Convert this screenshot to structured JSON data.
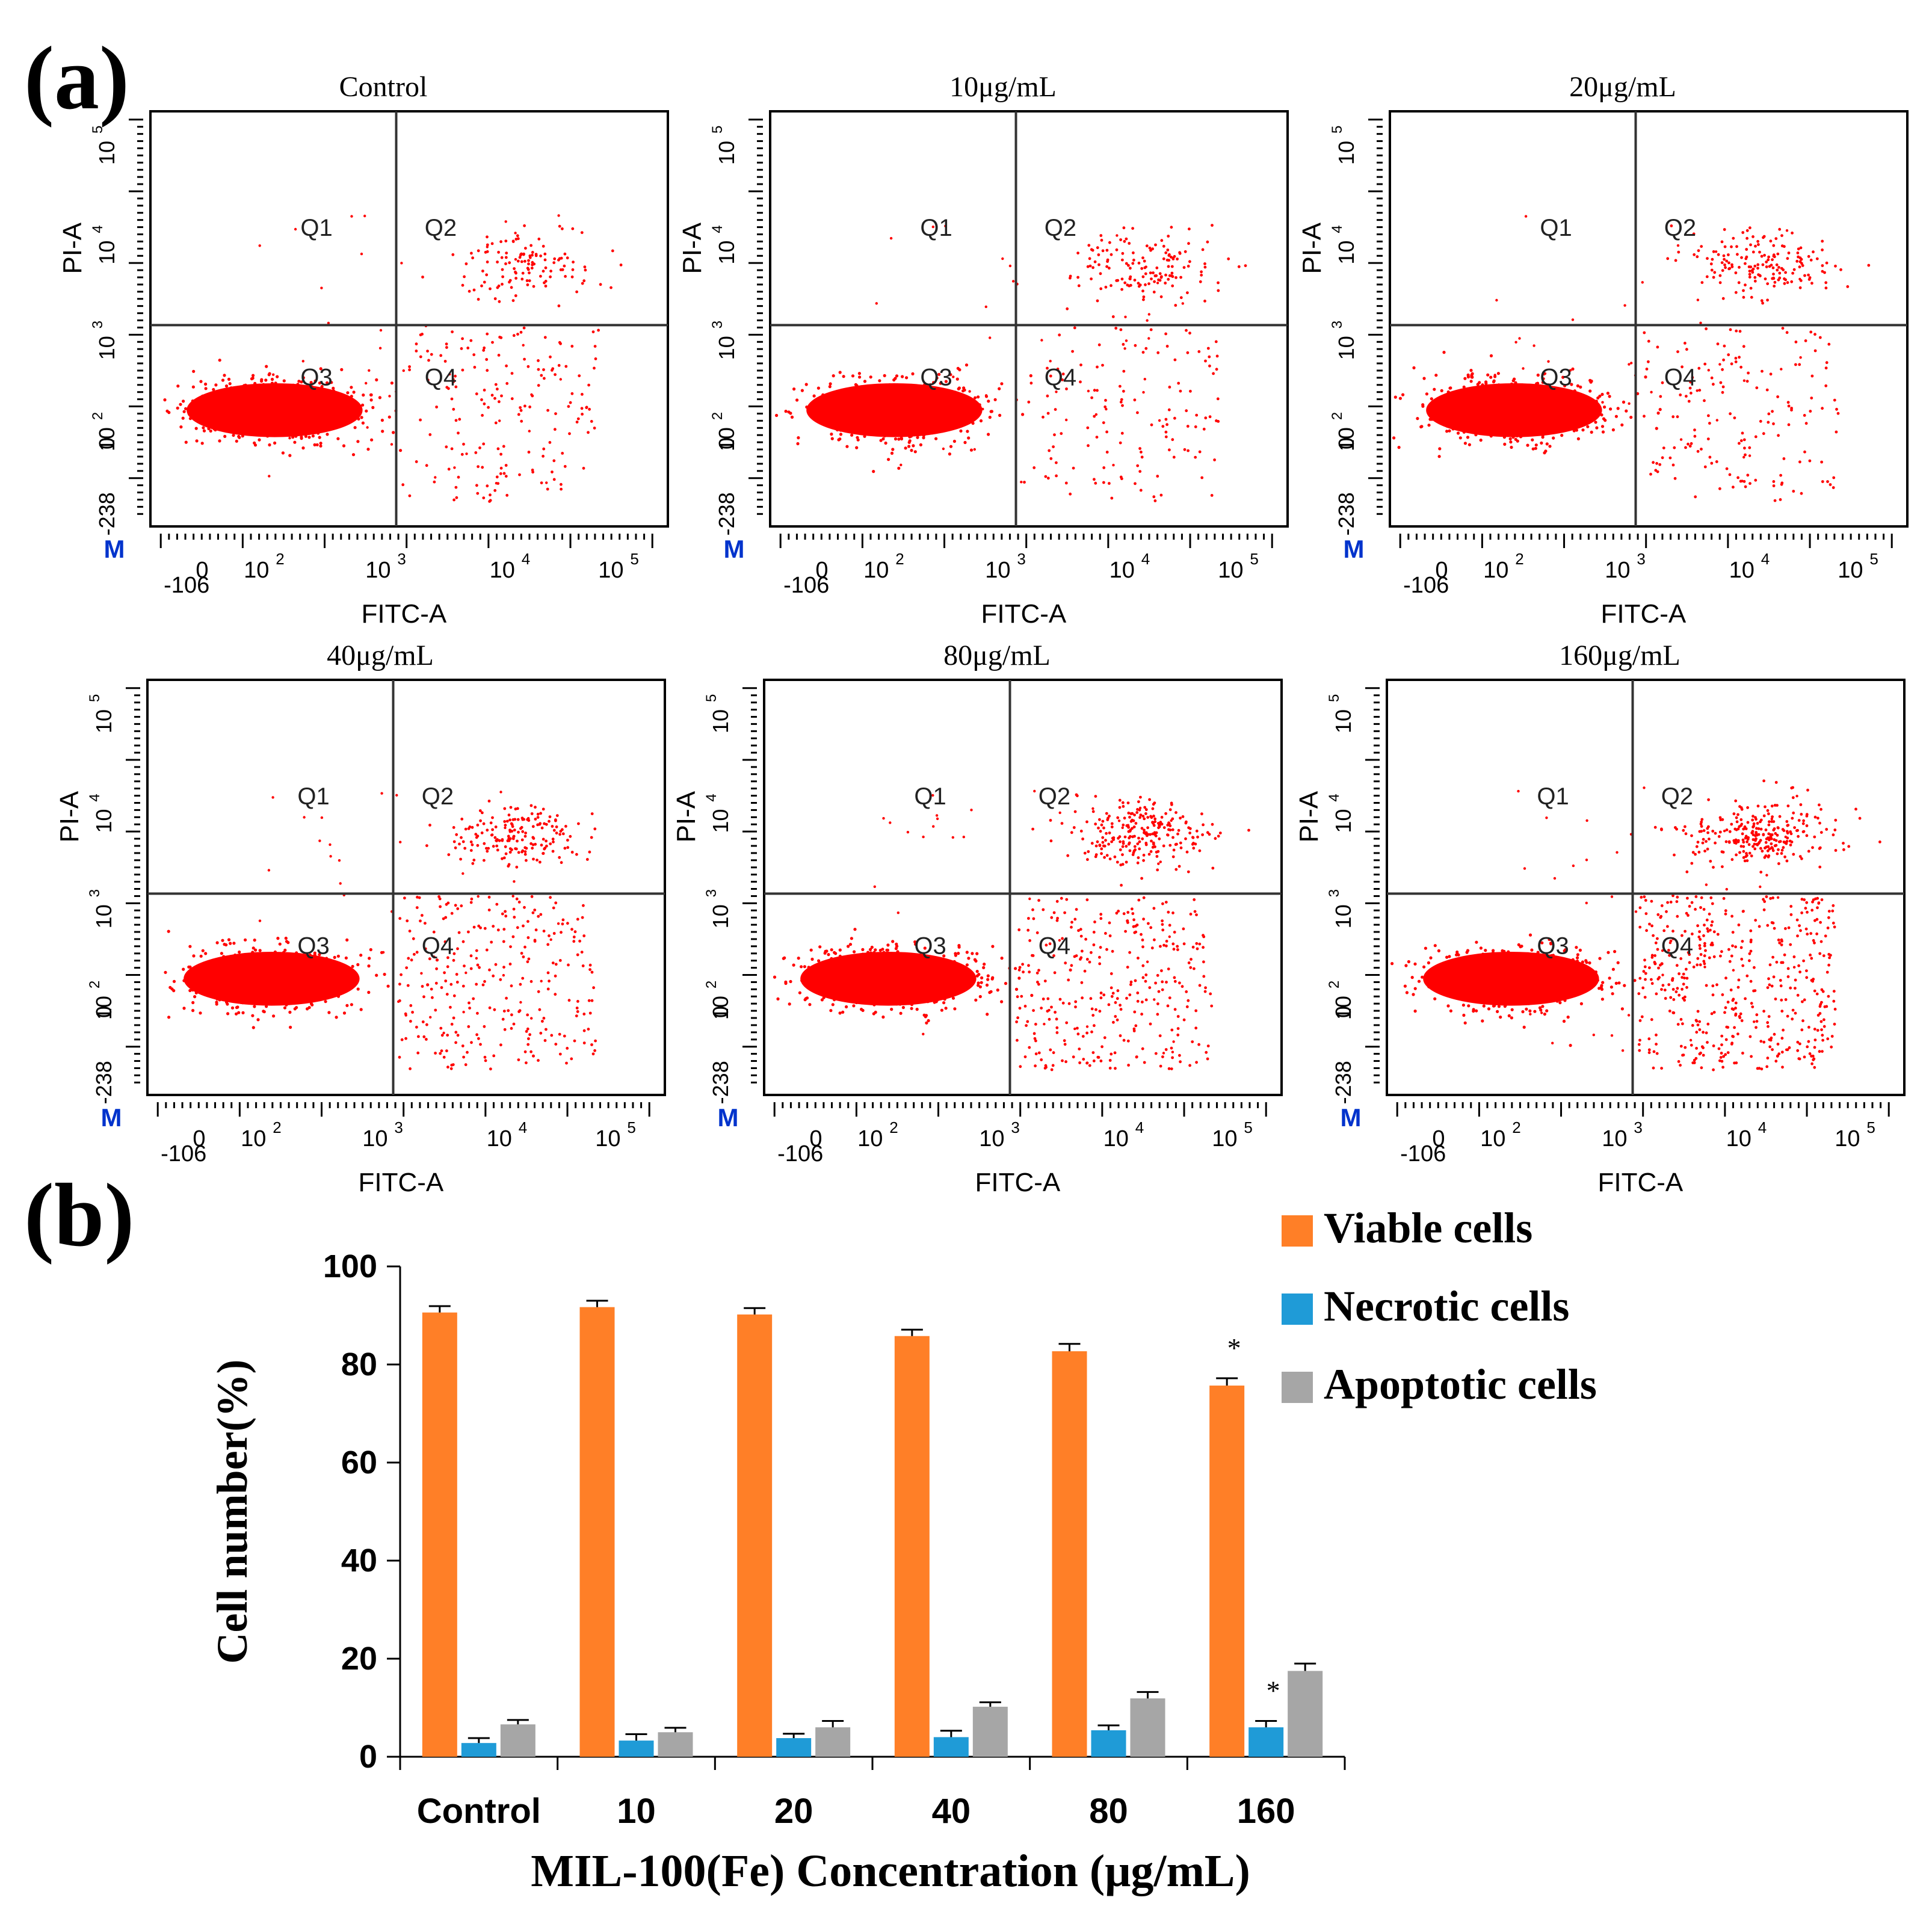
{
  "panel_labels": {
    "a": "(a)",
    "b": "(b)"
  },
  "colors": {
    "dots": "#ff0000",
    "viable": "#ff7f27",
    "necrotic": "#1f9bd7",
    "apoptotic": "#a6a6a6",
    "axis": "#000000",
    "gate": "#333333",
    "marker_m": "#0033cc"
  },
  "flow": {
    "xlabel": "FITC-A",
    "ylabel": "PI-A",
    "marker": "M",
    "x_ticks": [
      "-106",
      "0",
      "10",
      "10",
      "10",
      "10"
    ],
    "x_tick_exps": [
      "",
      "",
      "2",
      "3",
      "4",
      "5"
    ],
    "y_ticks": [
      "-238",
      "0",
      "10",
      "10",
      "10",
      "10"
    ],
    "y_tick_exps": [
      "",
      "",
      "2",
      "3",
      "4",
      "5"
    ],
    "quadrants": [
      "Q1",
      "Q2",
      "Q3",
      "Q4"
    ],
    "panels": [
      {
        "title": "Control",
        "viable": 90.6,
        "necrotic": 2.8,
        "apoptotic": 6.6
      },
      {
        "title": "10μg/mL",
        "viable": 91.7,
        "necrotic": 3.3,
        "apoptotic": 5.0
      },
      {
        "title": "20μg/mL",
        "viable": 90.2,
        "necrotic": 3.8,
        "apoptotic": 6.0
      },
      {
        "title": "40μg/mL",
        "viable": 85.8,
        "necrotic": 4.0,
        "apoptotic": 10.2
      },
      {
        "title": "80μg/mL",
        "viable": 82.7,
        "necrotic": 5.4,
        "apoptotic": 11.9
      },
      {
        "title": "160μg/mL",
        "viable": 75.7,
        "necrotic": 6.0,
        "apoptotic": 17.5
      }
    ]
  },
  "chart_data": {
    "type": "bar",
    "title": "",
    "xlabel": "MIL-100(Fe) Concentration (μg/mL)",
    "ylabel": "Cell number(%)",
    "categories": [
      "Control",
      "10",
      "20",
      "40",
      "80",
      "160"
    ],
    "ylim": [
      0,
      100
    ],
    "yticks": [
      "0",
      "20",
      "40",
      "60",
      "80",
      "100"
    ],
    "grid": false,
    "legend_position": "top-right",
    "series": [
      {
        "name": "Viable cells",
        "values": [
          90.6,
          91.7,
          90.2,
          85.8,
          82.7,
          75.7
        ],
        "errors": [
          1.3,
          1.3,
          1.3,
          1.3,
          1.5,
          1.5
        ]
      },
      {
        "name": "Necrotic cells",
        "values": [
          2.8,
          3.3,
          3.8,
          4.0,
          5.4,
          6.0
        ],
        "errors": [
          1.0,
          1.3,
          0.9,
          1.3,
          1.0,
          1.3
        ]
      },
      {
        "name": "Apoptotic cells",
        "values": [
          6.6,
          5.0,
          6.0,
          10.2,
          11.9,
          17.5
        ],
        "errors": [
          0.9,
          0.9,
          1.3,
          0.9,
          1.3,
          1.5
        ]
      }
    ],
    "annotations": [
      {
        "text": "*",
        "category": "160",
        "series": "Viable cells"
      },
      {
        "text": "*",
        "category": "160",
        "series": "Necrotic cells"
      }
    ]
  }
}
